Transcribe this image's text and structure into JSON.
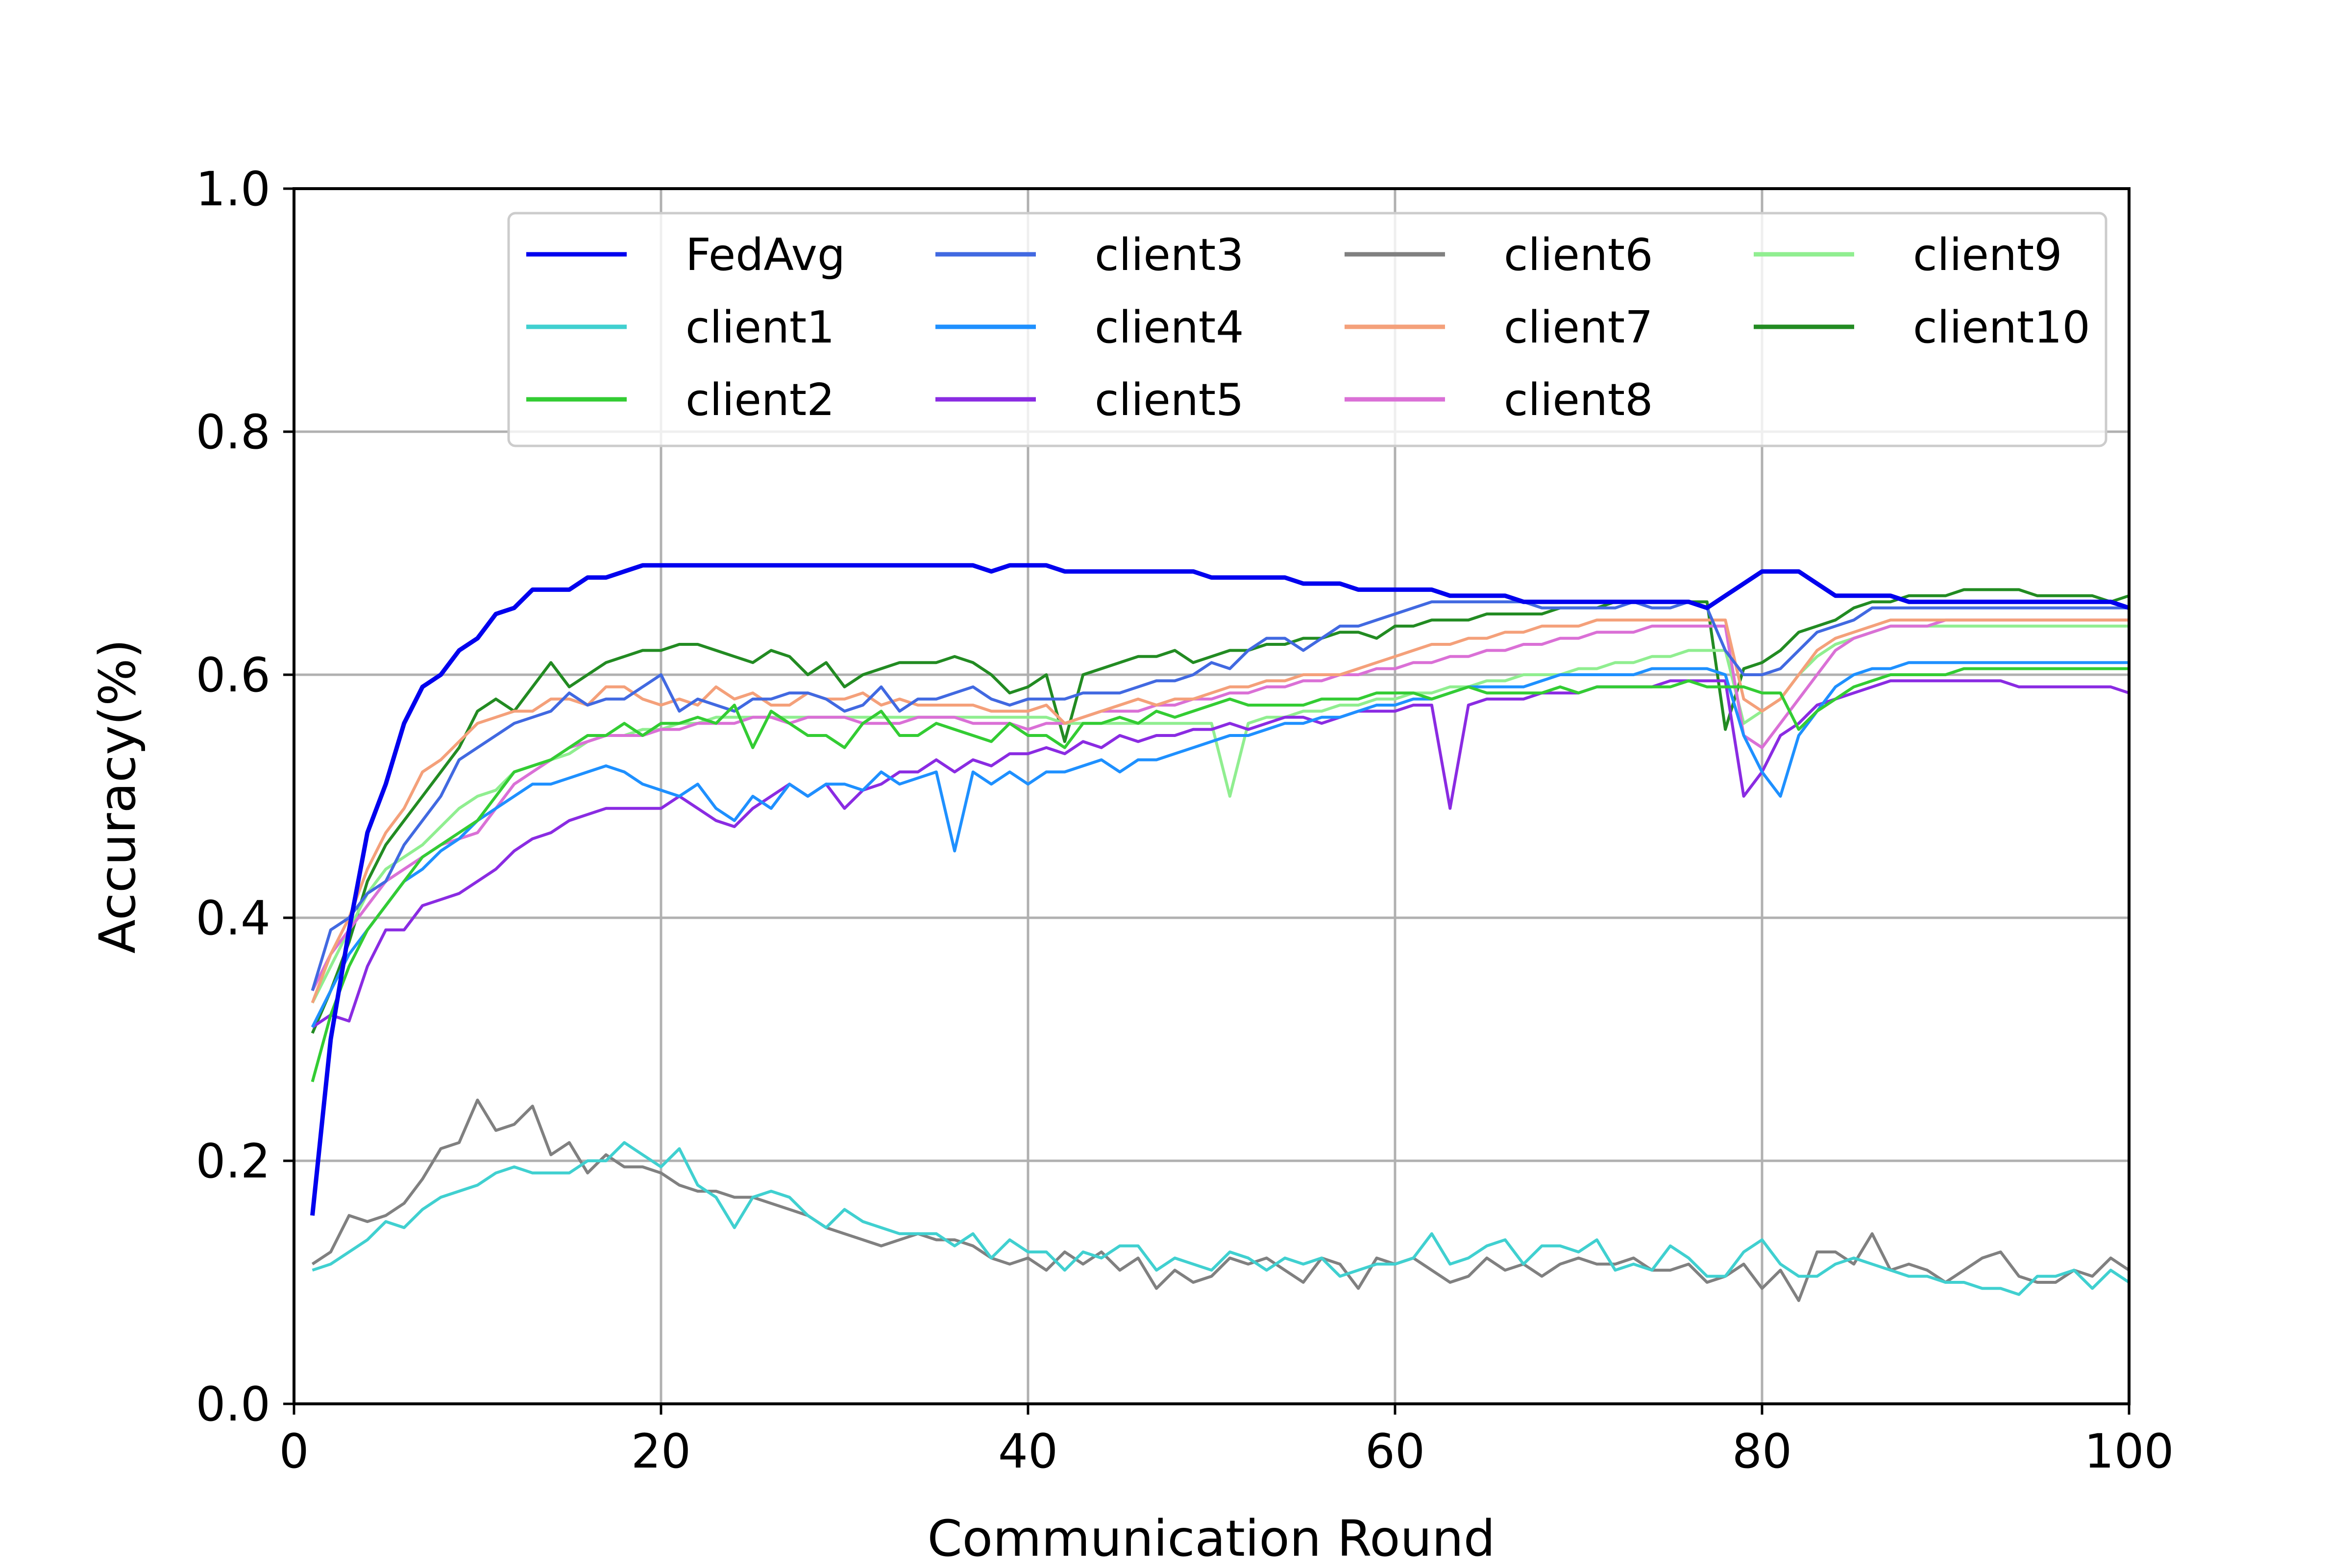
{
  "chart_data": {
    "type": "line",
    "title": "",
    "xlabel": "Communication Round",
    "ylabel": "Accuracy(%)",
    "xlim": [
      0,
      100
    ],
    "ylim": [
      0.0,
      1.0
    ],
    "xticks": [
      "0",
      "20",
      "40",
      "60",
      "80",
      "100"
    ],
    "yticks": [
      "0.0",
      "0.2",
      "0.4",
      "0.6",
      "0.8",
      "1.0"
    ],
    "grid": true,
    "legend": {
      "placement": "top",
      "columns": 4
    },
    "x_start": 1,
    "series": [
      {
        "name": "FedAvg",
        "color": "#0000ee",
        "values": [
          0.155,
          0.3,
          0.39,
          0.47,
          0.51,
          0.56,
          0.59,
          0.6,
          0.62,
          0.63,
          0.65,
          0.655,
          0.67,
          0.67,
          0.67,
          0.68,
          0.68,
          0.685,
          0.69,
          0.69,
          0.69,
          0.69,
          0.69,
          0.69,
          0.69,
          0.69,
          0.69,
          0.69,
          0.69,
          0.69,
          0.69,
          0.69,
          0.69,
          0.69,
          0.69,
          0.69,
          0.69,
          0.685,
          0.69,
          0.69,
          0.69,
          0.685,
          0.685,
          0.685,
          0.685,
          0.685,
          0.685,
          0.685,
          0.685,
          0.68,
          0.68,
          0.68,
          0.68,
          0.68,
          0.675,
          0.675,
          0.675,
          0.67,
          0.67,
          0.67,
          0.67,
          0.67,
          0.665,
          0.665,
          0.665,
          0.665,
          0.66,
          0.66,
          0.66,
          0.66,
          0.66,
          0.66,
          0.66,
          0.66,
          0.66,
          0.66,
          0.655,
          0.665,
          0.675,
          0.685,
          0.685,
          0.685,
          0.675,
          0.665,
          0.665,
          0.665,
          0.665,
          0.66,
          0.66,
          0.66,
          0.66,
          0.66,
          0.66,
          0.66,
          0.66,
          0.66,
          0.66,
          0.66,
          0.66,
          0.655
        ]
      },
      {
        "name": "client1",
        "color": "#40d0d0",
        "values": [
          0.11,
          0.115,
          0.125,
          0.135,
          0.15,
          0.145,
          0.16,
          0.17,
          0.175,
          0.18,
          0.19,
          0.195,
          0.19,
          0.19,
          0.19,
          0.2,
          0.2,
          0.215,
          0.205,
          0.195,
          0.21,
          0.18,
          0.17,
          0.145,
          0.17,
          0.175,
          0.17,
          0.155,
          0.145,
          0.16,
          0.15,
          0.145,
          0.14,
          0.14,
          0.14,
          0.13,
          0.14,
          0.12,
          0.135,
          0.125,
          0.125,
          0.11,
          0.125,
          0.12,
          0.13,
          0.13,
          0.11,
          0.12,
          0.115,
          0.11,
          0.125,
          0.12,
          0.11,
          0.12,
          0.115,
          0.12,
          0.105,
          0.11,
          0.115,
          0.115,
          0.12,
          0.14,
          0.115,
          0.12,
          0.13,
          0.135,
          0.115,
          0.13,
          0.13,
          0.125,
          0.135,
          0.11,
          0.115,
          0.11,
          0.13,
          0.12,
          0.105,
          0.105,
          0.125,
          0.135,
          0.115,
          0.105,
          0.105,
          0.115,
          0.12,
          0.115,
          0.11,
          0.105,
          0.105,
          0.1,
          0.1,
          0.095,
          0.095,
          0.09,
          0.105,
          0.105,
          0.11,
          0.095,
          0.11,
          0.1
        ]
      },
      {
        "name": "client2",
        "color": "#33cc33",
        "values": [
          0.265,
          0.32,
          0.36,
          0.39,
          0.41,
          0.43,
          0.45,
          0.46,
          0.47,
          0.48,
          0.5,
          0.52,
          0.525,
          0.53,
          0.54,
          0.55,
          0.55,
          0.56,
          0.55,
          0.56,
          0.56,
          0.565,
          0.56,
          0.575,
          0.54,
          0.57,
          0.56,
          0.55,
          0.55,
          0.54,
          0.56,
          0.57,
          0.55,
          0.55,
          0.56,
          0.555,
          0.55,
          0.545,
          0.56,
          0.55,
          0.55,
          0.54,
          0.56,
          0.56,
          0.565,
          0.56,
          0.57,
          0.565,
          0.57,
          0.575,
          0.58,
          0.575,
          0.575,
          0.575,
          0.575,
          0.58,
          0.58,
          0.58,
          0.585,
          0.585,
          0.585,
          0.58,
          0.585,
          0.59,
          0.585,
          0.585,
          0.585,
          0.585,
          0.59,
          0.585,
          0.59,
          0.59,
          0.59,
          0.59,
          0.59,
          0.595,
          0.59,
          0.59,
          0.59,
          0.585,
          0.585,
          0.555,
          0.57,
          0.58,
          0.59,
          0.595,
          0.6,
          0.6,
          0.6,
          0.6,
          0.605,
          0.605,
          0.605,
          0.605,
          0.605,
          0.605,
          0.605,
          0.605,
          0.605,
          0.605
        ]
      },
      {
        "name": "client3",
        "color": "#4169e1",
        "values": [
          0.34,
          0.39,
          0.4,
          0.42,
          0.43,
          0.46,
          0.48,
          0.5,
          0.53,
          0.54,
          0.55,
          0.56,
          0.565,
          0.57,
          0.585,
          0.575,
          0.58,
          0.58,
          0.59,
          0.6,
          0.57,
          0.58,
          0.575,
          0.57,
          0.58,
          0.58,
          0.585,
          0.585,
          0.58,
          0.57,
          0.575,
          0.59,
          0.57,
          0.58,
          0.58,
          0.585,
          0.59,
          0.58,
          0.575,
          0.58,
          0.58,
          0.58,
          0.585,
          0.585,
          0.585,
          0.59,
          0.595,
          0.595,
          0.6,
          0.61,
          0.605,
          0.62,
          0.63,
          0.63,
          0.62,
          0.63,
          0.64,
          0.64,
          0.645,
          0.65,
          0.655,
          0.66,
          0.66,
          0.66,
          0.66,
          0.66,
          0.66,
          0.655,
          0.655,
          0.655,
          0.655,
          0.655,
          0.66,
          0.655,
          0.655,
          0.66,
          0.655,
          0.62,
          0.6,
          0.6,
          0.605,
          0.62,
          0.635,
          0.64,
          0.645,
          0.655,
          0.655,
          0.655,
          0.655,
          0.655,
          0.655,
          0.655,
          0.655,
          0.655,
          0.655,
          0.655,
          0.655,
          0.655,
          0.655,
          0.655
        ]
      },
      {
        "name": "client4",
        "color": "#1e90ff",
        "values": [
          0.31,
          0.34,
          0.37,
          0.39,
          0.41,
          0.43,
          0.44,
          0.455,
          0.465,
          0.48,
          0.49,
          0.5,
          0.51,
          0.51,
          0.515,
          0.52,
          0.525,
          0.52,
          0.51,
          0.505,
          0.5,
          0.51,
          0.49,
          0.48,
          0.5,
          0.49,
          0.51,
          0.5,
          0.51,
          0.51,
          0.505,
          0.52,
          0.51,
          0.515,
          0.52,
          0.455,
          0.52,
          0.51,
          0.52,
          0.51,
          0.52,
          0.52,
          0.525,
          0.53,
          0.52,
          0.53,
          0.53,
          0.535,
          0.54,
          0.545,
          0.55,
          0.55,
          0.555,
          0.56,
          0.56,
          0.565,
          0.565,
          0.57,
          0.575,
          0.575,
          0.58,
          0.58,
          0.585,
          0.59,
          0.59,
          0.59,
          0.59,
          0.595,
          0.6,
          0.6,
          0.6,
          0.6,
          0.6,
          0.605,
          0.605,
          0.605,
          0.605,
          0.6,
          0.55,
          0.52,
          0.5,
          0.55,
          0.57,
          0.59,
          0.6,
          0.605,
          0.605,
          0.61,
          0.61,
          0.61,
          0.61,
          0.61,
          0.61,
          0.61,
          0.61,
          0.61,
          0.61,
          0.61,
          0.61,
          0.61
        ]
      },
      {
        "name": "client5",
        "color": "#8a2be2",
        "values": [
          0.31,
          0.32,
          0.315,
          0.36,
          0.39,
          0.39,
          0.41,
          0.415,
          0.42,
          0.43,
          0.44,
          0.455,
          0.465,
          0.47,
          0.48,
          0.485,
          0.49,
          0.49,
          0.49,
          0.49,
          0.5,
          0.49,
          0.48,
          0.475,
          0.49,
          0.5,
          0.51,
          0.5,
          0.51,
          0.49,
          0.505,
          0.51,
          0.52,
          0.52,
          0.53,
          0.52,
          0.53,
          0.525,
          0.535,
          0.535,
          0.54,
          0.535,
          0.545,
          0.54,
          0.55,
          0.545,
          0.55,
          0.55,
          0.555,
          0.555,
          0.56,
          0.555,
          0.56,
          0.565,
          0.565,
          0.56,
          0.565,
          0.57,
          0.57,
          0.57,
          0.575,
          0.575,
          0.49,
          0.575,
          0.58,
          0.58,
          0.58,
          0.585,
          0.585,
          0.585,
          0.59,
          0.59,
          0.59,
          0.59,
          0.595,
          0.595,
          0.595,
          0.595,
          0.5,
          0.52,
          0.55,
          0.56,
          0.575,
          0.58,
          0.585,
          0.59,
          0.595,
          0.595,
          0.595,
          0.595,
          0.595,
          0.595,
          0.595,
          0.59,
          0.59,
          0.59,
          0.59,
          0.59,
          0.59,
          0.585
        ]
      },
      {
        "name": "client6",
        "color": "#808080",
        "values": [
          0.115,
          0.125,
          0.155,
          0.15,
          0.155,
          0.165,
          0.185,
          0.21,
          0.215,
          0.25,
          0.225,
          0.23,
          0.245,
          0.205,
          0.215,
          0.19,
          0.205,
          0.195,
          0.195,
          0.19,
          0.18,
          0.175,
          0.175,
          0.17,
          0.17,
          0.165,
          0.16,
          0.155,
          0.145,
          0.14,
          0.135,
          0.13,
          0.135,
          0.14,
          0.135,
          0.135,
          0.13,
          0.12,
          0.115,
          0.12,
          0.11,
          0.125,
          0.115,
          0.125,
          0.11,
          0.12,
          0.095,
          0.11,
          0.1,
          0.105,
          0.12,
          0.115,
          0.12,
          0.11,
          0.1,
          0.12,
          0.115,
          0.095,
          0.12,
          0.115,
          0.12,
          0.11,
          0.1,
          0.105,
          0.12,
          0.11,
          0.115,
          0.105,
          0.115,
          0.12,
          0.115,
          0.115,
          0.12,
          0.11,
          0.11,
          0.115,
          0.1,
          0.105,
          0.115,
          0.095,
          0.11,
          0.085,
          0.125,
          0.125,
          0.115,
          0.14,
          0.11,
          0.115,
          0.11,
          0.1,
          0.11,
          0.12,
          0.125,
          0.105,
          0.1,
          0.1,
          0.11,
          0.105,
          0.12,
          0.11
        ]
      },
      {
        "name": "client7",
        "color": "#f4a07a",
        "values": [
          0.33,
          0.37,
          0.4,
          0.44,
          0.47,
          0.49,
          0.52,
          0.53,
          0.545,
          0.56,
          0.565,
          0.57,
          0.57,
          0.58,
          0.58,
          0.575,
          0.59,
          0.59,
          0.58,
          0.575,
          0.58,
          0.575,
          0.59,
          0.58,
          0.585,
          0.575,
          0.575,
          0.585,
          0.58,
          0.58,
          0.585,
          0.575,
          0.58,
          0.575,
          0.575,
          0.575,
          0.575,
          0.57,
          0.57,
          0.57,
          0.575,
          0.56,
          0.565,
          0.57,
          0.575,
          0.58,
          0.575,
          0.58,
          0.58,
          0.585,
          0.59,
          0.59,
          0.595,
          0.595,
          0.6,
          0.6,
          0.6,
          0.605,
          0.61,
          0.615,
          0.62,
          0.625,
          0.625,
          0.63,
          0.63,
          0.635,
          0.635,
          0.64,
          0.64,
          0.64,
          0.645,
          0.645,
          0.645,
          0.645,
          0.645,
          0.645,
          0.645,
          0.645,
          0.58,
          0.57,
          0.58,
          0.6,
          0.62,
          0.63,
          0.635,
          0.64,
          0.645,
          0.645,
          0.645,
          0.645,
          0.645,
          0.645,
          0.645,
          0.645,
          0.645,
          0.645,
          0.645,
          0.645,
          0.645,
          0.645
        ]
      },
      {
        "name": "client8",
        "color": "#da70d6",
        "values": [
          0.34,
          0.37,
          0.39,
          0.41,
          0.43,
          0.44,
          0.45,
          0.46,
          0.465,
          0.47,
          0.49,
          0.51,
          0.52,
          0.53,
          0.54,
          0.545,
          0.55,
          0.55,
          0.55,
          0.555,
          0.555,
          0.56,
          0.56,
          0.56,
          0.565,
          0.565,
          0.56,
          0.565,
          0.565,
          0.565,
          0.56,
          0.56,
          0.56,
          0.565,
          0.565,
          0.565,
          0.56,
          0.56,
          0.56,
          0.555,
          0.56,
          0.56,
          0.565,
          0.57,
          0.57,
          0.57,
          0.575,
          0.575,
          0.58,
          0.58,
          0.585,
          0.585,
          0.59,
          0.59,
          0.595,
          0.595,
          0.6,
          0.6,
          0.605,
          0.605,
          0.61,
          0.61,
          0.615,
          0.615,
          0.62,
          0.62,
          0.625,
          0.625,
          0.63,
          0.63,
          0.635,
          0.635,
          0.635,
          0.64,
          0.64,
          0.64,
          0.64,
          0.64,
          0.55,
          0.54,
          0.56,
          0.58,
          0.6,
          0.62,
          0.63,
          0.635,
          0.64,
          0.64,
          0.64,
          0.645,
          0.645,
          0.645,
          0.645,
          0.645,
          0.645,
          0.645,
          0.645,
          0.645,
          0.645,
          0.645
        ]
      },
      {
        "name": "client9",
        "color": "#90ee90",
        "values": [
          0.33,
          0.36,
          0.39,
          0.42,
          0.44,
          0.45,
          0.46,
          0.475,
          0.49,
          0.5,
          0.505,
          0.52,
          0.525,
          0.53,
          0.535,
          0.545,
          0.55,
          0.55,
          0.555,
          0.555,
          0.56,
          0.56,
          0.565,
          0.565,
          0.565,
          0.565,
          0.565,
          0.565,
          0.565,
          0.565,
          0.565,
          0.565,
          0.565,
          0.565,
          0.565,
          0.565,
          0.565,
          0.565,
          0.565,
          0.565,
          0.565,
          0.56,
          0.56,
          0.56,
          0.56,
          0.56,
          0.56,
          0.56,
          0.56,
          0.56,
          0.5,
          0.56,
          0.565,
          0.565,
          0.57,
          0.57,
          0.575,
          0.575,
          0.58,
          0.58,
          0.585,
          0.585,
          0.59,
          0.59,
          0.595,
          0.595,
          0.6,
          0.6,
          0.6,
          0.605,
          0.605,
          0.61,
          0.61,
          0.615,
          0.615,
          0.62,
          0.62,
          0.62,
          0.56,
          0.57,
          0.58,
          0.6,
          0.615,
          0.625,
          0.63,
          0.635,
          0.64,
          0.64,
          0.64,
          0.64,
          0.64,
          0.64,
          0.64,
          0.64,
          0.64,
          0.64,
          0.64,
          0.64,
          0.64,
          0.64
        ]
      },
      {
        "name": "client10",
        "color": "#228b22",
        "values": [
          0.305,
          0.34,
          0.38,
          0.43,
          0.46,
          0.48,
          0.5,
          0.52,
          0.54,
          0.57,
          0.58,
          0.57,
          0.59,
          0.61,
          0.59,
          0.6,
          0.61,
          0.615,
          0.62,
          0.62,
          0.625,
          0.625,
          0.62,
          0.615,
          0.61,
          0.62,
          0.615,
          0.6,
          0.61,
          0.59,
          0.6,
          0.605,
          0.61,
          0.61,
          0.61,
          0.615,
          0.61,
          0.6,
          0.585,
          0.59,
          0.6,
          0.545,
          0.6,
          0.605,
          0.61,
          0.615,
          0.615,
          0.62,
          0.61,
          0.615,
          0.62,
          0.62,
          0.625,
          0.625,
          0.63,
          0.63,
          0.635,
          0.635,
          0.63,
          0.64,
          0.64,
          0.645,
          0.645,
          0.645,
          0.65,
          0.65,
          0.65,
          0.65,
          0.655,
          0.655,
          0.655,
          0.66,
          0.66,
          0.66,
          0.66,
          0.66,
          0.66,
          0.555,
          0.605,
          0.61,
          0.62,
          0.635,
          0.64,
          0.645,
          0.655,
          0.66,
          0.66,
          0.665,
          0.665,
          0.665,
          0.67,
          0.67,
          0.67,
          0.67,
          0.665,
          0.665,
          0.665,
          0.665,
          0.66,
          0.665
        ]
      }
    ]
  }
}
